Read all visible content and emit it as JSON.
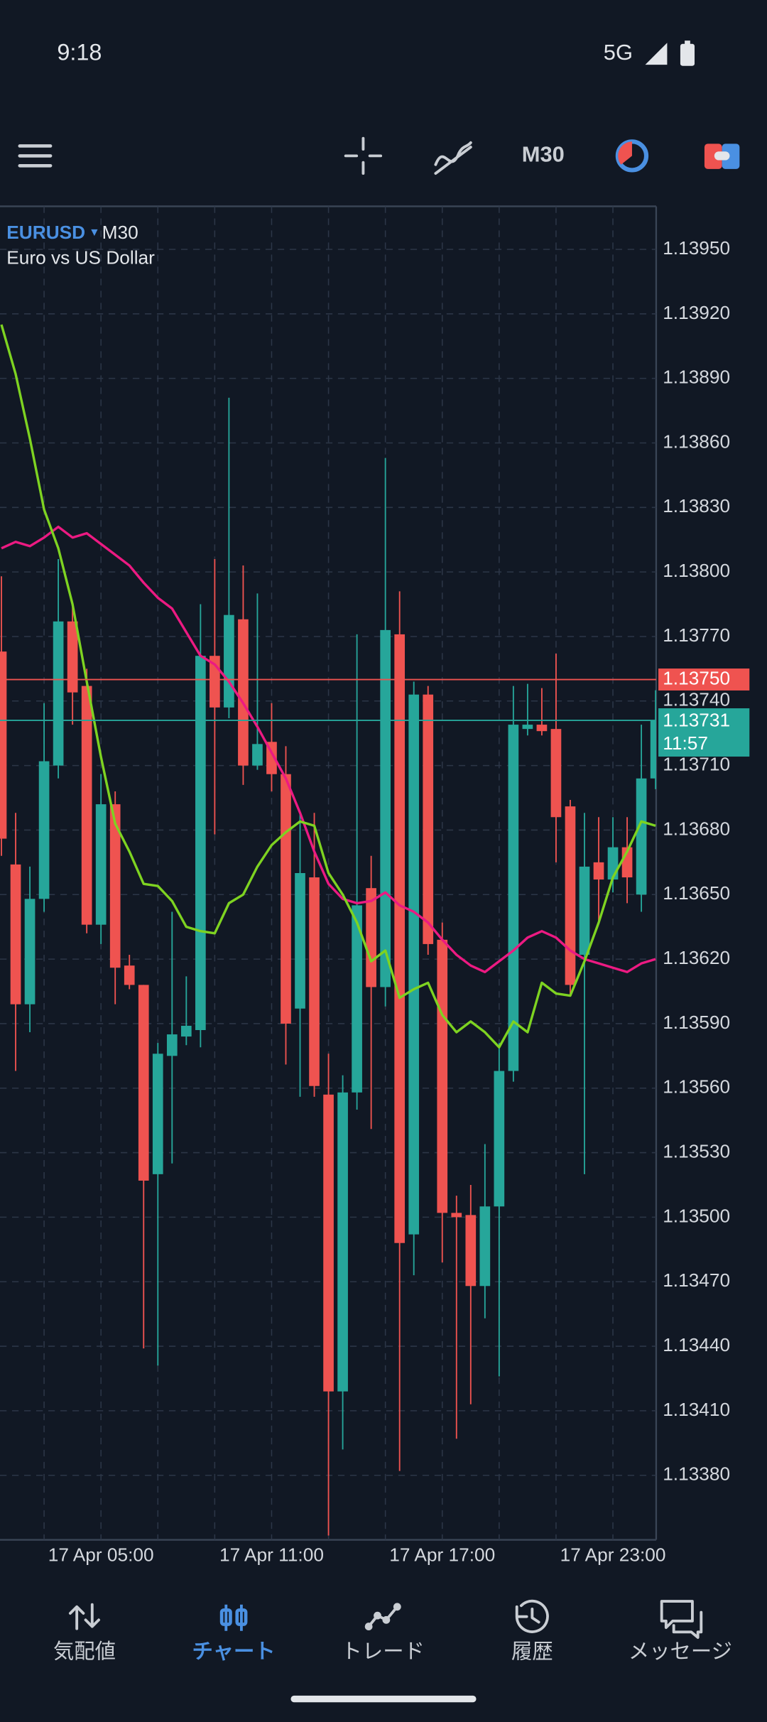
{
  "status_bar": {
    "time": "9:18",
    "network": "5G"
  },
  "toolbar": {
    "timeframe": "M30"
  },
  "chart_data": {
    "type": "candlestick",
    "symbol": "EURUSD",
    "timeframe": "M30",
    "description": "Euro vs US Dollar",
    "categories": [
      null,
      null,
      null,
      null,
      null,
      null,
      null,
      "17 Apr 05:00",
      null,
      null,
      null,
      null,
      null,
      null,
      null,
      null,
      null,
      null,
      null,
      "17 Apr 11:00",
      null,
      null,
      null,
      null,
      null,
      null,
      null,
      null,
      null,
      null,
      null,
      "17 Apr 17:00",
      null,
      null,
      null,
      null,
      null,
      null,
      null,
      null,
      null,
      null,
      null,
      "17 Apr 23:00",
      null,
      null,
      null
    ],
    "open": [
      1.13763,
      1.13664,
      1.13599,
      1.13648,
      1.1371,
      1.13777,
      1.13747,
      1.13636,
      1.13692,
      1.13617,
      1.13608,
      1.1352,
      1.13575,
      1.13584,
      1.13587,
      1.13761,
      1.13737,
      1.13778,
      1.1371,
      1.13721,
      1.13706,
      1.13597,
      1.13658,
      1.13557,
      1.13419,
      1.13558,
      1.13653,
      1.13607,
      1.13771,
      1.13492,
      1.13743,
      1.13629,
      1.13502,
      1.13501,
      1.13468,
      1.13505,
      1.13568,
      1.13727,
      1.13729,
      1.13727,
      1.13691,
      1.13622,
      1.13665,
      1.13657,
      1.13672,
      1.1365,
      1.13704
    ],
    "high": [
      1.13798,
      1.13688,
      1.13663,
      1.13739,
      1.13806,
      1.13785,
      1.13755,
      1.13706,
      1.13698,
      1.13622,
      1.13608,
      1.13581,
      1.13642,
      1.13612,
      1.13785,
      1.13806,
      1.13881,
      1.13803,
      1.1379,
      1.13739,
      1.13719,
      1.13688,
      1.13688,
      1.13576,
      1.13566,
      1.13771,
      1.13668,
      1.13853,
      1.13791,
      1.13749,
      1.13747,
      1.13637,
      1.1351,
      1.13515,
      1.13534,
      1.13581,
      1.13747,
      1.13748,
      1.13746,
      1.13762,
      1.13694,
      1.13688,
      1.13686,
      1.13686,
      1.13686,
      1.13729,
      1.13745
    ],
    "low": [
      1.13668,
      1.13568,
      1.13586,
      1.13642,
      1.13704,
      1.13729,
      1.13632,
      1.13627,
      1.13599,
      1.13606,
      1.13439,
      1.13431,
      1.13525,
      1.1358,
      1.13579,
      1.13678,
      1.13732,
      1.13701,
      1.13708,
      1.13698,
      1.13571,
      1.13556,
      1.13556,
      1.13352,
      1.13392,
      1.1355,
      1.13541,
      1.13598,
      1.13382,
      1.13473,
      1.13622,
      1.13479,
      1.13397,
      1.13413,
      1.13453,
      1.13426,
      1.13563,
      1.13724,
      1.13724,
      1.13665,
      1.13603,
      1.1352,
      1.13637,
      1.13651,
      1.13646,
      1.13642,
      1.13699
    ],
    "close": [
      1.13676,
      1.13599,
      1.13648,
      1.13712,
      1.13777,
      1.13744,
      1.13636,
      1.13692,
      1.13616,
      1.13608,
      1.13517,
      1.13576,
      1.13585,
      1.13589,
      1.13761,
      1.13737,
      1.1378,
      1.1371,
      1.1372,
      1.13706,
      1.1359,
      1.1366,
      1.13561,
      1.13419,
      1.13558,
      1.13645,
      1.13607,
      1.13773,
      1.13488,
      1.13743,
      1.13627,
      1.13502,
      1.135,
      1.13468,
      1.13505,
      1.13568,
      1.13729,
      1.13729,
      1.13726,
      1.13686,
      1.13608,
      1.13663,
      1.13657,
      1.13672,
      1.13658,
      1.13704,
      1.13731
    ],
    "up_color": "#26a69a",
    "down_color": "#ef5350",
    "indicators": [
      {
        "color": "#ec1a82",
        "values": [
          1.13811,
          1.13814,
          1.13812,
          1.13816,
          1.13821,
          1.13816,
          1.13818,
          1.13813,
          1.13808,
          1.13803,
          1.13795,
          1.13788,
          1.13783,
          1.13772,
          1.13761,
          1.13757,
          1.13749,
          1.13739,
          1.13728,
          1.13716,
          1.13704,
          1.13688,
          1.1367,
          1.13655,
          1.13648,
          1.13646,
          1.13647,
          1.13651,
          1.13645,
          1.13642,
          1.13637,
          1.13629,
          1.13622,
          1.13617,
          1.13614,
          1.13619,
          1.13624,
          1.1363,
          1.13633,
          1.1363,
          1.13624,
          1.1362,
          1.13618,
          1.13616,
          1.13614,
          1.13618,
          1.1362
        ]
      },
      {
        "color": "#7ed321",
        "values": [
          1.13915,
          1.13892,
          1.13862,
          1.13829,
          1.13811,
          1.13785,
          1.13749,
          1.13714,
          1.13683,
          1.1367,
          1.13655,
          1.13654,
          1.13647,
          1.13635,
          1.13633,
          1.13632,
          1.13646,
          1.1365,
          1.13663,
          1.13673,
          1.13679,
          1.13684,
          1.13682,
          1.1366,
          1.1365,
          1.13637,
          1.13619,
          1.13624,
          1.13602,
          1.13606,
          1.13609,
          1.13594,
          1.13586,
          1.13591,
          1.13586,
          1.13579,
          1.13591,
          1.13586,
          1.13609,
          1.13604,
          1.13603,
          1.13619,
          1.13637,
          1.13658,
          1.1367,
          1.13684,
          1.13682
        ]
      }
    ],
    "price_lines": [
      {
        "value": 1.1375,
        "label": "1.13750",
        "color": "#ef5350"
      },
      {
        "value": 1.13731,
        "label": "1.13731",
        "countdown": "11:57",
        "color": "#26a69a"
      }
    ],
    "ylim": [
      1.1335,
      1.1397
    ],
    "yticks": [
      {
        "value": 1.1395,
        "label": "1.13950"
      },
      {
        "value": 1.1392,
        "label": "1.13920"
      },
      {
        "value": 1.1389,
        "label": "1.13890"
      },
      {
        "value": 1.1386,
        "label": "1.13860"
      },
      {
        "value": 1.1383,
        "label": "1.13830"
      },
      {
        "value": 1.138,
        "label": "1.13800"
      },
      {
        "value": 1.1377,
        "label": "1.13770"
      },
      {
        "value": 1.1374,
        "label": "1.13740"
      },
      {
        "value": 1.1371,
        "label": "1.13710"
      },
      {
        "value": 1.1368,
        "label": "1.13680"
      },
      {
        "value": 1.1365,
        "label": "1.13650"
      },
      {
        "value": 1.1362,
        "label": "1.13620"
      },
      {
        "value": 1.1359,
        "label": "1.13590"
      },
      {
        "value": 1.1356,
        "label": "1.13560"
      },
      {
        "value": 1.1353,
        "label": "1.13530"
      },
      {
        "value": 1.135,
        "label": "1.13500"
      },
      {
        "value": 1.1347,
        "label": "1.13470"
      },
      {
        "value": 1.1344,
        "label": "1.13440"
      },
      {
        "value": 1.1341,
        "label": "1.13410"
      },
      {
        "value": 1.1338,
        "label": "1.13380"
      }
    ],
    "grid": true
  },
  "nav": {
    "items": [
      "気配値",
      "チャート",
      "トレード",
      "履歴",
      "メッセージ"
    ],
    "active": 1,
    "active_color": "#4a90e2"
  }
}
